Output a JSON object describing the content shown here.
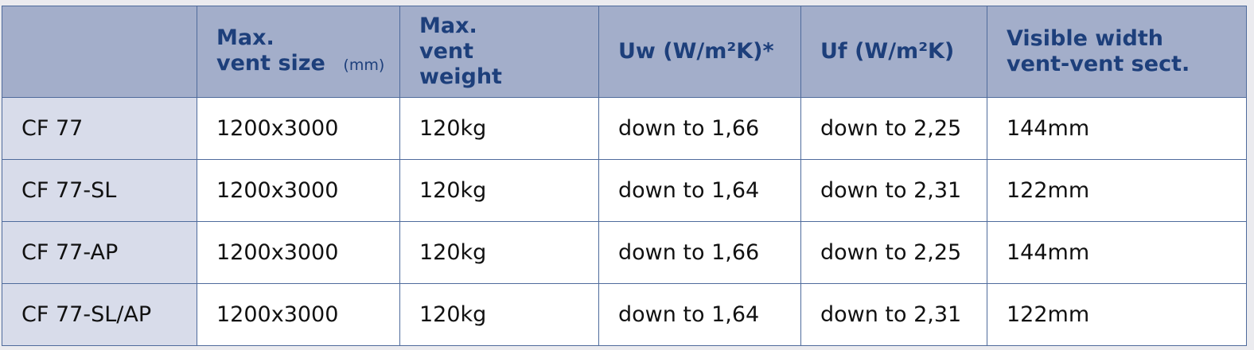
{
  "colors": {
    "header_bg": "#a3aeca",
    "header_text": "#1d3f7b",
    "first_col_bg": "#d8dcea",
    "border": "#4f6b9c"
  },
  "table": {
    "headers": [
      {
        "main": "",
        "unit": ""
      },
      {
        "main": "Max. vent size",
        "unit": "(mm)"
      },
      {
        "main": "Max. vent weight",
        "unit": ""
      },
      {
        "main": "Uw (W/m²K)*",
        "unit": ""
      },
      {
        "main": "Uf (W/m²K)",
        "unit": ""
      },
      {
        "main": "Visible width vent-vent sect.",
        "unit": ""
      }
    ],
    "rows": [
      [
        "CF 77",
        "1200x3000",
        "120kg",
        "down to 1,66",
        "down to 2,25",
        "144mm"
      ],
      [
        "CF 77-SL",
        "1200x3000",
        "120kg",
        "down to 1,64",
        "down to 2,31",
        "122mm"
      ],
      [
        "CF 77-AP",
        "1200x3000",
        "120kg",
        "down to 1,66",
        "down to 2,25",
        "144mm"
      ],
      [
        "CF 77-SL/AP",
        "1200x3000",
        "120kg",
        "down to 1,64",
        "down to 2,31",
        "122mm"
      ]
    ]
  }
}
